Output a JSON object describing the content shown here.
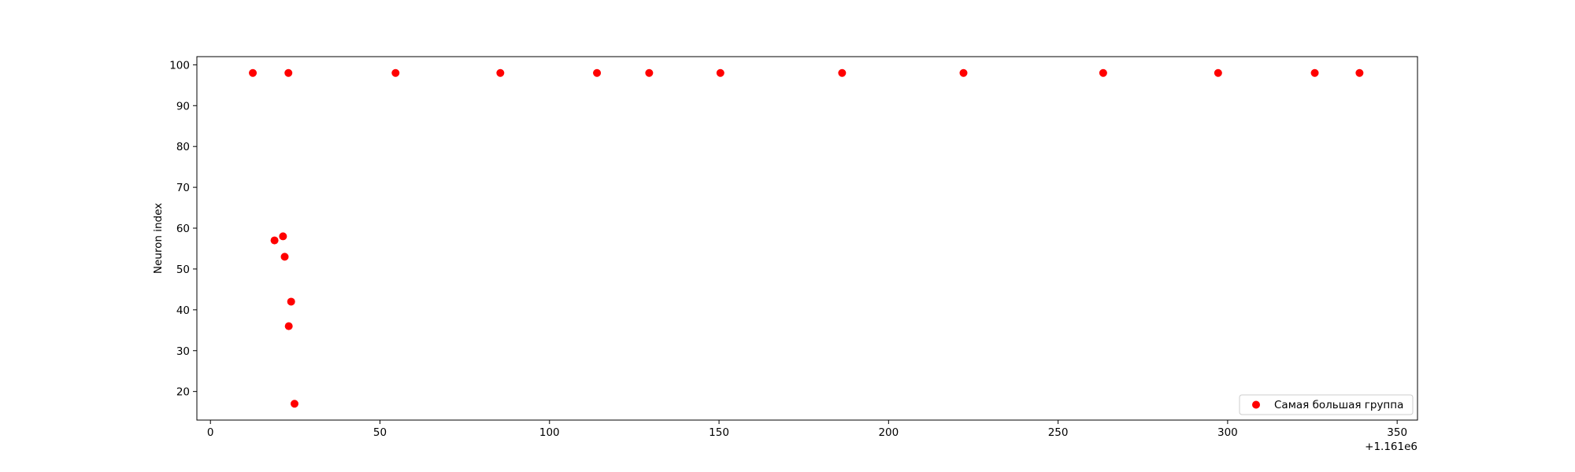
{
  "chart_data": {
    "type": "scatter",
    "xlabel": "",
    "ylabel": "Neuron index",
    "x_offset_label": "+1.161e6",
    "xlim": [
      -4,
      356
    ],
    "ylim": [
      13,
      102
    ],
    "xticks": [
      {
        "value": 0,
        "label": "0"
      },
      {
        "value": 50,
        "label": "50"
      },
      {
        "value": 100,
        "label": "100"
      },
      {
        "value": 150,
        "label": "150"
      },
      {
        "value": 200,
        "label": "200"
      },
      {
        "value": 250,
        "label": "250"
      },
      {
        "value": 300,
        "label": "300"
      },
      {
        "value": 350,
        "label": "350"
      }
    ],
    "yticks": [
      {
        "value": 20,
        "label": "20"
      },
      {
        "value": 30,
        "label": "30"
      },
      {
        "value": 40,
        "label": "40"
      },
      {
        "value": 50,
        "label": "50"
      },
      {
        "value": 60,
        "label": "60"
      },
      {
        "value": 70,
        "label": "70"
      },
      {
        "value": 80,
        "label": "80"
      },
      {
        "value": 90,
        "label": "90"
      },
      {
        "value": 100,
        "label": "100"
      }
    ],
    "grid": false,
    "legend_position": "lower-right",
    "series": [
      {
        "name": "Самая большая группа",
        "color": "#ff0000",
        "points": [
          {
            "x": 12.5,
            "y": 98
          },
          {
            "x": 23.0,
            "y": 98
          },
          {
            "x": 54.6,
            "y": 98
          },
          {
            "x": 85.5,
            "y": 98
          },
          {
            "x": 114.0,
            "y": 98
          },
          {
            "x": 129.4,
            "y": 98
          },
          {
            "x": 150.4,
            "y": 98
          },
          {
            "x": 186.3,
            "y": 98
          },
          {
            "x": 222.1,
            "y": 98
          },
          {
            "x": 263.3,
            "y": 98
          },
          {
            "x": 297.2,
            "y": 98
          },
          {
            "x": 325.7,
            "y": 98
          },
          {
            "x": 338.9,
            "y": 98
          },
          {
            "x": 18.9,
            "y": 57
          },
          {
            "x": 21.4,
            "y": 58
          },
          {
            "x": 21.9,
            "y": 53
          },
          {
            "x": 23.8,
            "y": 42
          },
          {
            "x": 23.1,
            "y": 36
          },
          {
            "x": 24.8,
            "y": 17
          }
        ]
      }
    ]
  }
}
